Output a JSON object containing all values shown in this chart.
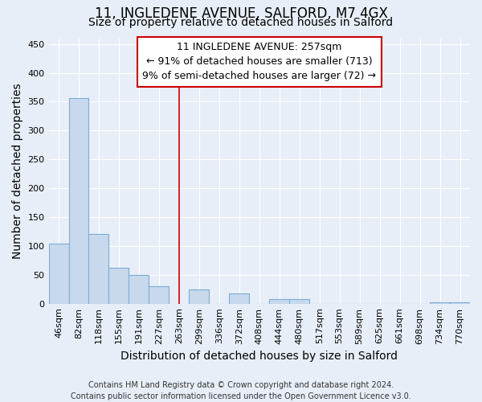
{
  "title_line1": "11, INGLEDENE AVENUE, SALFORD, M7 4GX",
  "title_line2": "Size of property relative to detached houses in Salford",
  "xlabel": "Distribution of detached houses by size in Salford",
  "ylabel": "Number of detached properties",
  "categories": [
    "46sqm",
    "82sqm",
    "118sqm",
    "155sqm",
    "191sqm",
    "227sqm",
    "263sqm",
    "299sqm",
    "336sqm",
    "372sqm",
    "408sqm",
    "444sqm",
    "480sqm",
    "517sqm",
    "553sqm",
    "589sqm",
    "625sqm",
    "661sqm",
    "698sqm",
    "734sqm",
    "770sqm"
  ],
  "values": [
    104,
    356,
    121,
    62,
    50,
    30,
    0,
    25,
    0,
    17,
    0,
    8,
    8,
    0,
    0,
    0,
    0,
    0,
    0,
    2,
    2
  ],
  "bar_color": "#c8d9ed",
  "bar_edge_color": "#7aadd4",
  "vline_color": "#cc0000",
  "annotation_line1": "11 INGLEDENE AVENUE: 257sqm",
  "annotation_line2": "← 91% of detached houses are smaller (713)",
  "annotation_line3": "9% of semi-detached houses are larger (72) →",
  "annotation_box_facecolor": "#ffffff",
  "annotation_box_edgecolor": "#cc0000",
  "ylim": [
    0,
    460
  ],
  "yticks": [
    0,
    50,
    100,
    150,
    200,
    250,
    300,
    350,
    400,
    450
  ],
  "footer_line1": "Contains HM Land Registry data © Crown copyright and database right 2024.",
  "footer_line2": "Contains public sector information licensed under the Open Government Licence v3.0.",
  "background_color": "#e8eef8",
  "plot_bg_color": "#e8eef8",
  "grid_color": "#ffffff",
  "title_fontsize": 12,
  "subtitle_fontsize": 10,
  "axis_label_fontsize": 10,
  "tick_fontsize": 8,
  "annotation_fontsize": 9,
  "footer_fontsize": 7
}
